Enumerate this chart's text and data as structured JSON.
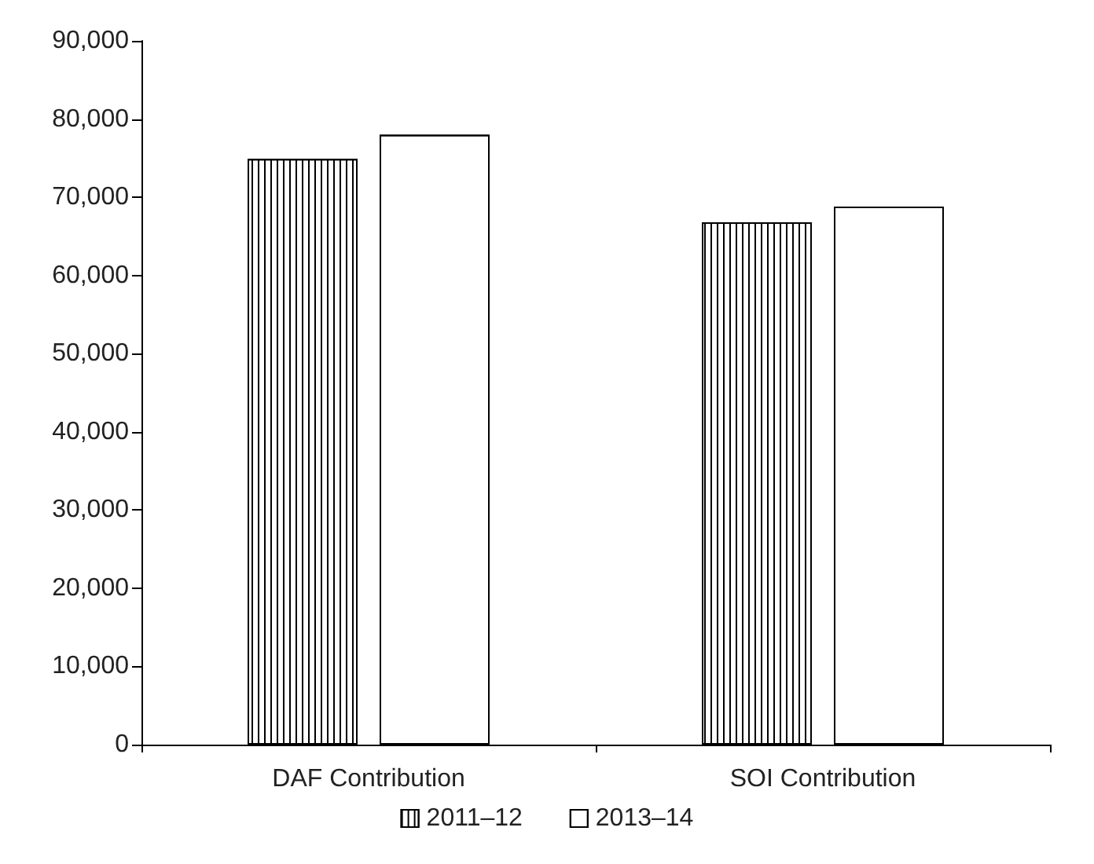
{
  "chart_data": {
    "type": "bar",
    "categories": [
      "DAF Contribution",
      "SOI Contribution"
    ],
    "series": [
      {
        "name": "2011–12",
        "color": "#ffffff",
        "values": [
          74900,
          66800
        ]
      },
      {
        "name": "2013–14",
        "color": "#ffffff",
        "values": [
          78000,
          68800
        ]
      }
    ],
    "ylim": [
      0,
      90000
    ],
    "yticks": [
      0,
      {
        "value": 10000,
        "label": "10,000"
      },
      {
        "value": 20000,
        "label": "20,000"
      },
      {
        "value": 30000,
        "label": "30,000"
      },
      {
        "value": 40000,
        "label": "40,000"
      },
      {
        "value": 50000,
        "label": "50,000"
      },
      {
        "value": 60000,
        "label": "60,000"
      },
      {
        "value": 70000,
        "label": "70,000"
      },
      {
        "value": 80000,
        "label": "80,000"
      },
      {
        "value": 90000,
        "label": "90,000"
      }
    ],
    "grid": false,
    "legend": "bottom"
  }
}
